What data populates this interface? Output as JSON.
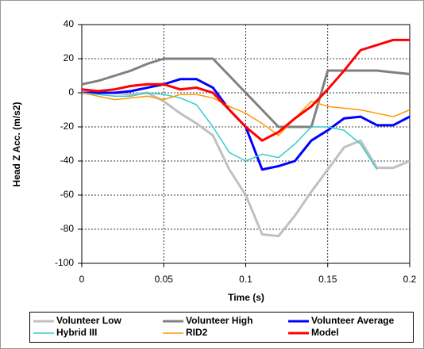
{
  "chart_data": {
    "type": "line",
    "x_label": "Time (s)",
    "y_label": "Head Z Acc. (m/s2)",
    "xlim": [
      0,
      0.2
    ],
    "xticks": [
      0,
      0.05,
      0.1,
      0.15,
      0.2
    ],
    "ylim": [
      -100,
      40
    ],
    "yticks": [
      -100,
      -80,
      -60,
      -40,
      -20,
      0,
      20,
      40
    ],
    "grid": true,
    "legend": "bottom",
    "x": [
      0,
      0.01,
      0.02,
      0.03,
      0.04,
      0.05,
      0.06,
      0.07,
      0.08,
      0.09,
      0.1,
      0.11,
      0.12,
      0.13,
      0.14,
      0.15,
      0.16,
      0.17,
      0.18,
      0.19,
      0.2
    ],
    "series": [
      {
        "name": "Volunteer Low",
        "color": "#c0c0c0",
        "values": [
          0,
          0,
          0,
          -1,
          0,
          -5,
          -12,
          -18,
          -25,
          -45,
          -60,
          -83,
          -84,
          -72,
          -58,
          -45,
          -32,
          -28,
          -44,
          -44,
          -40
        ]
      },
      {
        "name": "Volunteer High",
        "color": "#808080",
        "values": [
          5,
          7,
          10,
          13,
          17,
          20,
          20,
          20,
          20,
          10,
          0,
          -10,
          -20,
          -20,
          -20,
          13,
          13,
          13,
          13,
          12,
          11
        ]
      },
      {
        "name": "Volunteer Average",
        "color": "#0000ff",
        "values": [
          0,
          0,
          0,
          1,
          3,
          5,
          8,
          8,
          3,
          -10,
          -20,
          -45,
          -43,
          -40,
          -28,
          -22,
          -15,
          -14,
          -19,
          -19,
          -14
        ]
      },
      {
        "name": "Hybrid III",
        "color": "#33cccc",
        "values": [
          0,
          -1,
          -2,
          -2,
          0,
          -1,
          -3,
          -7,
          -20,
          -35,
          -40,
          -36,
          -38,
          -30,
          -20,
          -20,
          -22,
          -30,
          -45,
          null,
          null
        ]
      },
      {
        "name": "RID2",
        "color": "#ff9900",
        "values": [
          0,
          -2,
          -4,
          -3,
          -2,
          -4,
          -1,
          -1,
          -3,
          -8,
          -12,
          -18,
          -25,
          -15,
          -5,
          -8,
          -9,
          -10,
          -12,
          -14,
          -10
        ]
      },
      {
        "name": "Model",
        "color": "#ff0000",
        "values": [
          2,
          1,
          2,
          4,
          5,
          5,
          2,
          3,
          0,
          -10,
          -20,
          -28,
          -23,
          -15,
          -8,
          2,
          13,
          25,
          28,
          31,
          31
        ]
      }
    ]
  }
}
